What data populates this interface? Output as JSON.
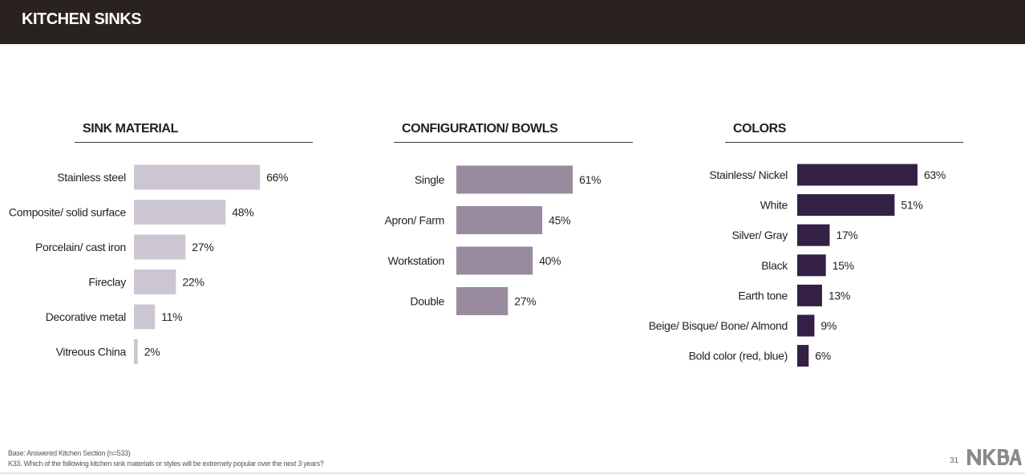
{
  "header": {
    "title": "KITCHEN SINKS"
  },
  "chart_data": [
    {
      "type": "bar",
      "orientation": "horizontal",
      "title": "SINK MATERIAL",
      "categories": [
        "Stainless steel",
        "Composite/ solid surface",
        "Porcelain/ cast iron",
        "Fireclay",
        "Decorative metal",
        "Vitreous China"
      ],
      "values": [
        66,
        48,
        27,
        22,
        11,
        2
      ],
      "value_labels": [
        "66%",
        "48%",
        "27%",
        "22%",
        "11%",
        "2%"
      ],
      "unit": "%",
      "color": "#cbc6d1"
    },
    {
      "type": "bar",
      "orientation": "horizontal",
      "title": "CONFIGURATION/ BOWLS",
      "categories": [
        "Single",
        "Apron/ Farm",
        "Workstation",
        "Double"
      ],
      "values": [
        61,
        45,
        40,
        27
      ],
      "value_labels": [
        "61%",
        "45%",
        "40%",
        "27%"
      ],
      "unit": "%",
      "color": "#988b9e"
    },
    {
      "type": "bar",
      "orientation": "horizontal",
      "title": "COLORS",
      "categories": [
        "Stainless/ Nickel",
        "White",
        "Silver/ Gray",
        "Black",
        "Earth tone",
        "Beige/ Bisque/ Bone/ Almond",
        "Bold color (red, blue)"
      ],
      "values": [
        63,
        51,
        17,
        15,
        13,
        9,
        6
      ],
      "value_labels": [
        "63%",
        "51%",
        "17%",
        "15%",
        "13%",
        "9%",
        "6%"
      ],
      "unit": "%",
      "color": "#341f45"
    }
  ],
  "footnotes": {
    "base": "Base:  Answered Kitchen Section (n=533)",
    "question": "K33. Which of the following kitchen sink materials or styles will be extremely popular over the next 3 years?"
  },
  "page_number": "31",
  "logo": {
    "text": "NKBA"
  }
}
